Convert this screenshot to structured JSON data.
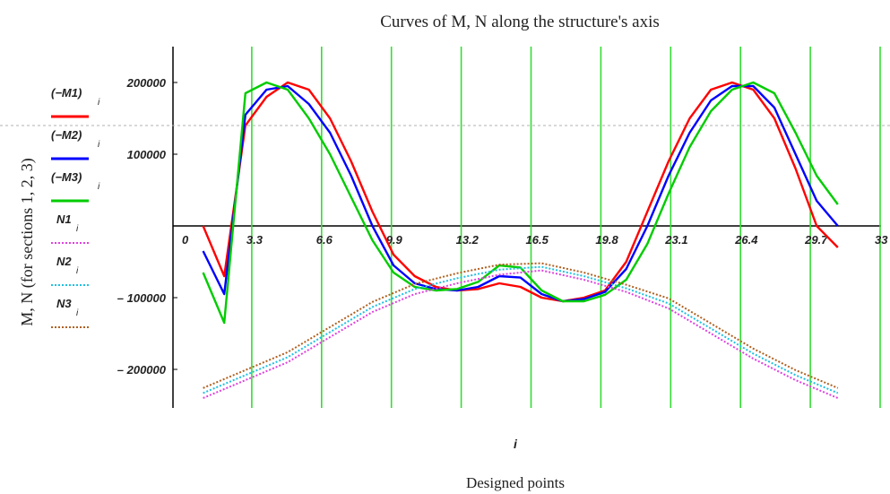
{
  "chart_data": {
    "type": "line",
    "title": "Curves of M, N along the structure's axis",
    "xlabel": "Designed points",
    "x_variable": "i",
    "ylabel": "M, N (for sections 1, 2, 3)",
    "xlim": [
      0,
      33
    ],
    "ylim": [
      -250000,
      250000
    ],
    "x_ticks": [
      "0",
      "3.3",
      "6.6",
      "9.9",
      "13.2",
      "16.5",
      "19.8",
      "23.1",
      "26.4",
      "29.7",
      "33"
    ],
    "y_ticks": [
      "200000",
      "100000",
      "-100000",
      "-200000"
    ],
    "vertical_gridlines_at": [
      3.3,
      6.6,
      9.9,
      13.2,
      16.5,
      19.8,
      23.1,
      26.4,
      29.7,
      33
    ],
    "reference_line_y": 140000,
    "series": [
      {
        "name": "(−M1)i",
        "label_main": "(−M1)",
        "label_sub": "i",
        "color": "#ff0000",
        "style": "solid",
        "x": [
          1,
          2,
          3,
          4,
          5,
          6,
          7,
          8,
          9,
          10,
          11,
          12,
          13,
          14,
          15,
          16,
          17,
          18,
          19,
          20,
          21,
          22,
          23,
          24,
          25,
          26,
          27,
          28,
          29,
          30,
          31
        ],
        "values": [
          0,
          -70000,
          140000,
          180000,
          200000,
          190000,
          150000,
          90000,
          20000,
          -40000,
          -70000,
          -85000,
          -90000,
          -88000,
          -80000,
          -85000,
          -100000,
          -105000,
          -100000,
          -90000,
          -50000,
          20000,
          90000,
          150000,
          190000,
          200000,
          190000,
          150000,
          80000,
          0,
          -30000
        ]
      },
      {
        "name": "(−M2)i",
        "label_main": "(−M2)",
        "label_sub": "i",
        "color": "#0000ff",
        "style": "solid",
        "x": [
          1,
          2,
          3,
          4,
          5,
          6,
          7,
          8,
          9,
          10,
          11,
          12,
          13,
          14,
          15,
          16,
          17,
          18,
          19,
          20,
          21,
          22,
          23,
          24,
          25,
          26,
          27,
          28,
          29,
          30,
          31
        ],
        "values": [
          -35000,
          -95000,
          155000,
          190000,
          195000,
          170000,
          130000,
          70000,
          0,
          -55000,
          -80000,
          -88000,
          -90000,
          -85000,
          -70000,
          -72000,
          -95000,
          -105000,
          -102000,
          -92000,
          -60000,
          0,
          70000,
          130000,
          175000,
          195000,
          195000,
          165000,
          100000,
          35000,
          0
        ]
      },
      {
        "name": "(−M3)i",
        "label_main": "(−M3)",
        "label_sub": "i",
        "color": "#00cc00",
        "style": "solid",
        "x": [
          1,
          2,
          3,
          4,
          5,
          6,
          7,
          8,
          9,
          10,
          11,
          12,
          13,
          14,
          15,
          16,
          17,
          18,
          19,
          20,
          21,
          22,
          23,
          24,
          25,
          26,
          27,
          28,
          29,
          30,
          31
        ],
        "values": [
          -65000,
          -135000,
          185000,
          200000,
          190000,
          150000,
          100000,
          40000,
          -20000,
          -65000,
          -85000,
          -90000,
          -88000,
          -78000,
          -55000,
          -58000,
          -90000,
          -105000,
          -105000,
          -96000,
          -75000,
          -25000,
          45000,
          110000,
          160000,
          190000,
          200000,
          185000,
          130000,
          70000,
          30000
        ]
      },
      {
        "name": "N1i",
        "label_main": "N1",
        "label_sub": "i",
        "color": "#e040e0",
        "style": "dotted",
        "x": [
          1,
          3,
          5,
          7,
          9,
          11,
          13,
          15,
          17,
          19,
          21,
          23,
          25,
          27,
          29,
          31
        ],
        "values": [
          -240000,
          -215000,
          -190000,
          -155000,
          -120000,
          -95000,
          -80000,
          -68000,
          -62000,
          -75000,
          -92000,
          -115000,
          -150000,
          -185000,
          -215000,
          -240000
        ]
      },
      {
        "name": "N2i",
        "label_main": "N2",
        "label_sub": "i",
        "color": "#20c0e0",
        "style": "dotted",
        "x": [
          1,
          3,
          5,
          7,
          9,
          11,
          13,
          15,
          17,
          19,
          21,
          23,
          25,
          27,
          29,
          31
        ],
        "values": [
          -233000,
          -208000,
          -183000,
          -148000,
          -113000,
          -88000,
          -73000,
          -61000,
          -57000,
          -70000,
          -87000,
          -108000,
          -143000,
          -178000,
          -208000,
          -233000
        ]
      },
      {
        "name": "N3i",
        "label_main": "N3",
        "label_sub": "i",
        "color": "#b06020",
        "style": "dotted",
        "x": [
          1,
          3,
          5,
          7,
          9,
          11,
          13,
          15,
          17,
          19,
          21,
          23,
          25,
          27,
          29,
          31
        ],
        "values": [
          -226000,
          -201000,
          -176000,
          -141000,
          -106000,
          -81000,
          -66000,
          -54000,
          -52000,
          -65000,
          -82000,
          -101000,
          -136000,
          -171000,
          -201000,
          -226000
        ]
      }
    ]
  }
}
